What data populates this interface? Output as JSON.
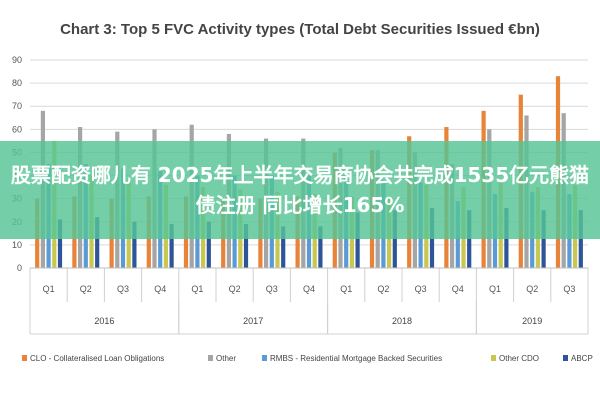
{
  "headline": "股票配资哪儿有 2025年上半年交易商协会共完成1535亿元熊猫债注册 同比增长165%",
  "chart_data": {
    "type": "bar",
    "title": "Chart 3: Top 5 FVC Activity types (Total Debt Securities Issued €bn)",
    "ylim": [
      0,
      90
    ],
    "yticks": [
      0,
      10,
      20,
      30,
      40,
      50,
      60,
      70,
      80,
      90
    ],
    "grid": true,
    "legend_position": "bottom",
    "categories": [
      "Q1",
      "Q2",
      "Q3",
      "Q4",
      "Q1",
      "Q2",
      "Q3",
      "Q4",
      "Q1",
      "Q2",
      "Q3",
      "Q4",
      "Q1",
      "Q2",
      "Q3"
    ],
    "groups": [
      {
        "label": "2016",
        "count": 4
      },
      {
        "label": "2017",
        "count": 4
      },
      {
        "label": "2018",
        "count": 4
      },
      {
        "label": "2019",
        "count": 3
      }
    ],
    "series": [
      {
        "name": "CLO - Collateralised Loan Obligations",
        "color": "#E8833A",
        "values": [
          30,
          31,
          30,
          31,
          31,
          30,
          30,
          31,
          50,
          51,
          57,
          61,
          68,
          75,
          83
        ]
      },
      {
        "name": "Other",
        "color": "#A5A5A5",
        "values": [
          68,
          61,
          59,
          60,
          62,
          58,
          56,
          56,
          52,
          51,
          50,
          45,
          60,
          66,
          67
        ]
      },
      {
        "name": "RMBS - Residential Mortgage Backed Securities",
        "color": "#5B9BD5",
        "values": [
          45,
          45,
          43,
          42,
          40,
          40,
          40,
          40,
          39,
          38,
          37,
          29,
          32,
          33,
          32
        ]
      },
      {
        "name": "Other CDO",
        "color": "#C8C850",
        "values": [
          55,
          40,
          38,
          36,
          35,
          34,
          33,
          32,
          31,
          30,
          36,
          35,
          38,
          35,
          36
        ]
      },
      {
        "name": "ABCP",
        "color": "#2E5597",
        "values": [
          21,
          22,
          20,
          19,
          20,
          19,
          18,
          18,
          24,
          25,
          26,
          25,
          26,
          25,
          25
        ]
      }
    ]
  }
}
